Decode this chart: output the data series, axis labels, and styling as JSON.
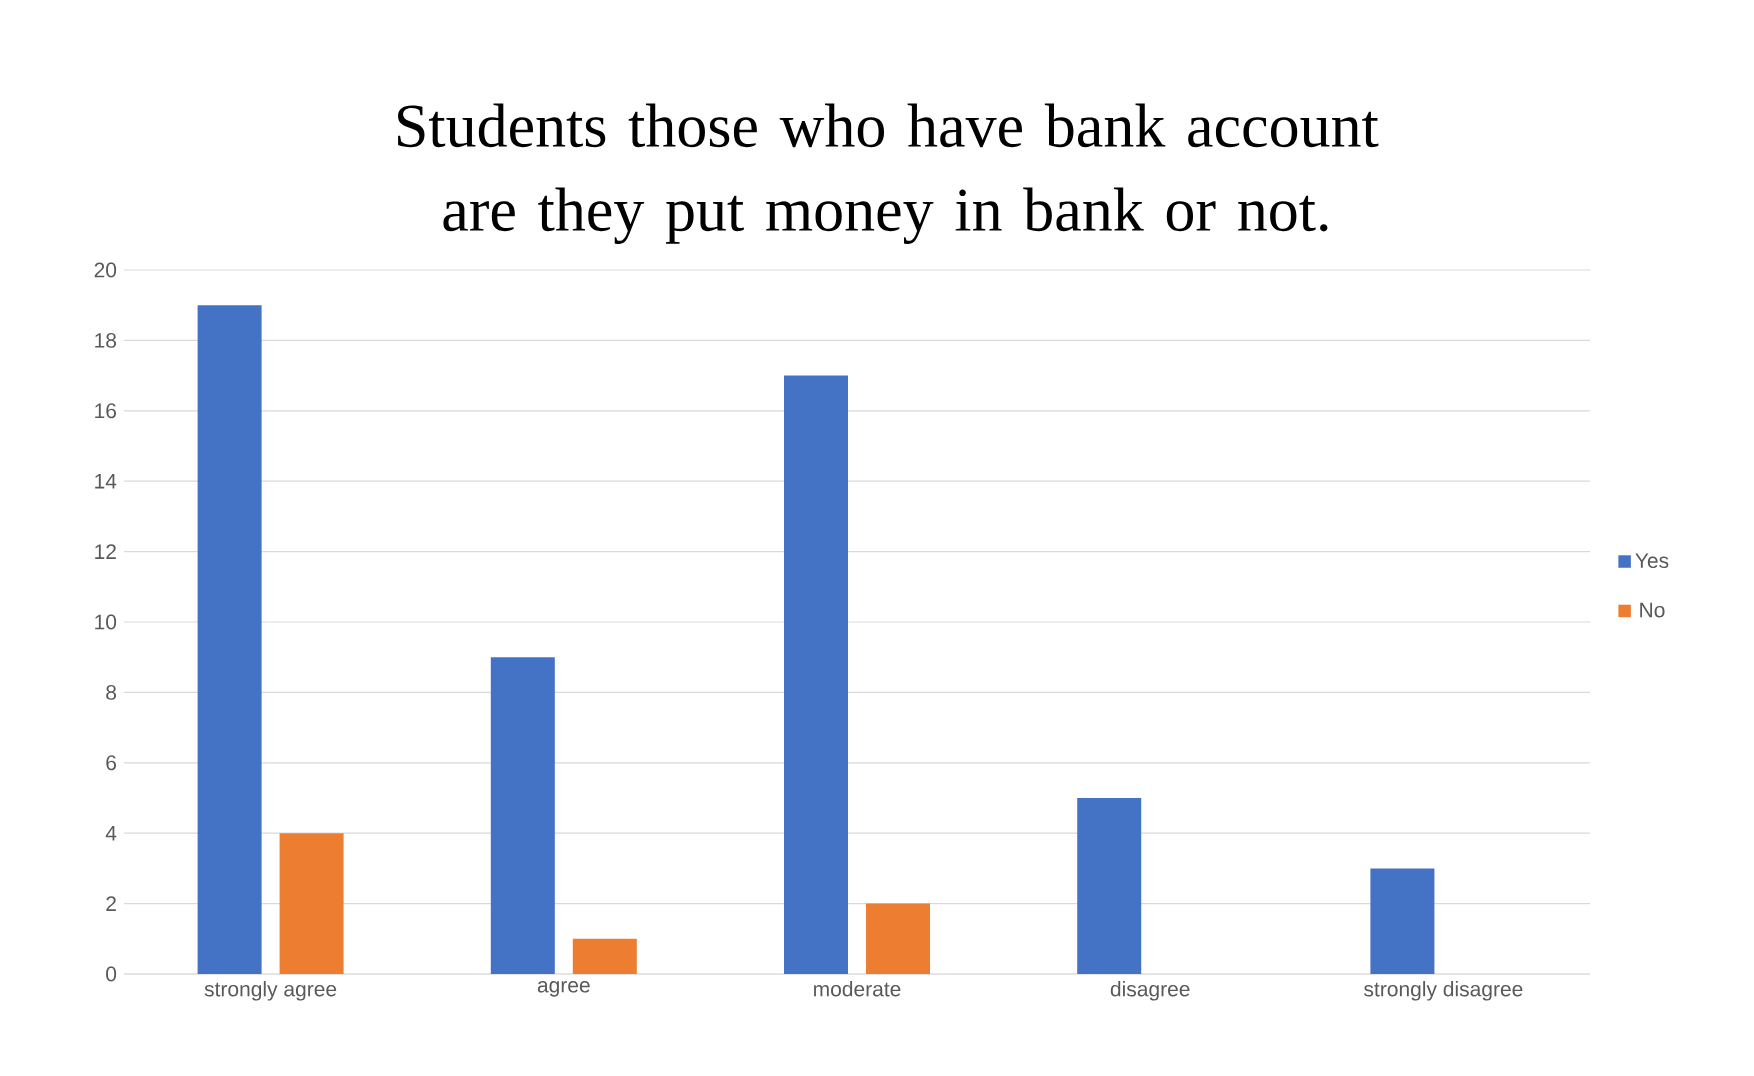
{
  "chart_data": {
    "type": "bar",
    "title": "Students those who have bank account are they put money in bank or not.",
    "categories": [
      "strongly agree",
      "agree",
      "moderate",
      "disagree",
      "strongly disagree"
    ],
    "series": [
      {
        "name": "Yes",
        "color": "#4472c4",
        "values": [
          19,
          9,
          17,
          5,
          3
        ]
      },
      {
        "name": "No",
        "color": "#ed7d31",
        "values": [
          4,
          1,
          2,
          0,
          0
        ]
      }
    ],
    "ylim": [
      0,
      20
    ],
    "yticks": [
      0,
      2,
      4,
      6,
      8,
      10,
      12,
      14,
      16,
      18,
      20
    ],
    "grid": "y",
    "legend": "right"
  }
}
